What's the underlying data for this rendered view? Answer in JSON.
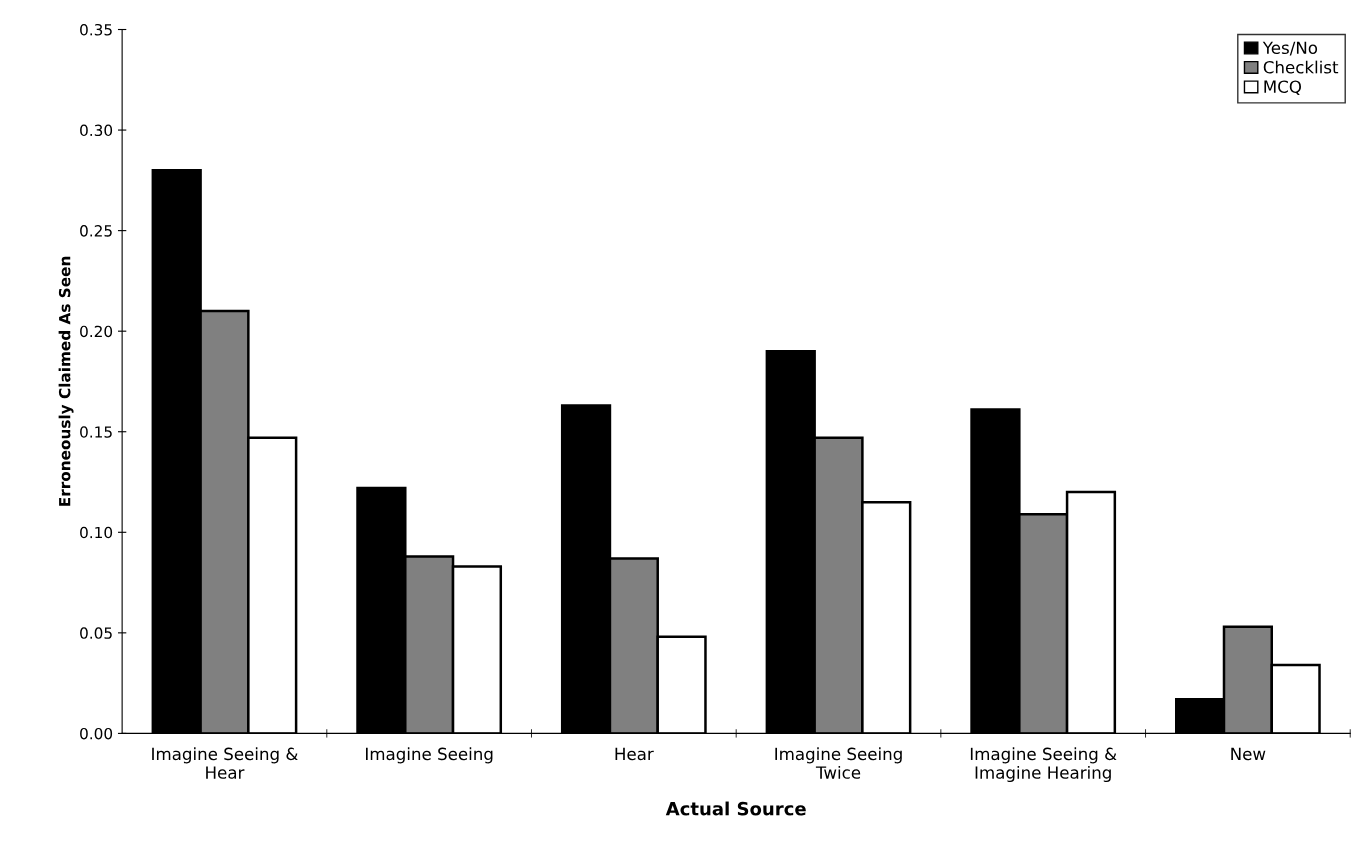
{
  "chart_data": {
    "type": "bar",
    "xlabel": "Actual Source",
    "ylabel": "Erroneously Claimed As Seen",
    "categories": [
      "Imagine Seeing &\nHear",
      "Imagine Seeing",
      "Hear",
      "Imagine Seeing\nTwice",
      "Imagine Seeing &\nImagine Hearing",
      "New"
    ],
    "series": [
      {
        "name": "Yes/No",
        "color": "#000000",
        "values": [
          0.28,
          0.122,
          0.163,
          0.19,
          0.161,
          0.017
        ]
      },
      {
        "name": "Checklist",
        "color": "#808080",
        "values": [
          0.21,
          0.088,
          0.087,
          0.147,
          0.109,
          0.053
        ]
      },
      {
        "name": "MCQ",
        "color": "#ffffff",
        "values": [
          0.147,
          0.083,
          0.048,
          0.115,
          0.12,
          0.034
        ]
      }
    ],
    "ylim": [
      0,
      0.35
    ],
    "yticks": [
      {
        "value": 0,
        "label": "0.00"
      },
      {
        "value": 0.05,
        "label": "0.05"
      },
      {
        "value": 0.1,
        "label": "0.10"
      },
      {
        "value": 0.15,
        "label": "0.15"
      },
      {
        "value": 0.2,
        "label": "0.20"
      },
      {
        "value": 0.25,
        "label": "0.25"
      },
      {
        "value": 0.3,
        "label": "0.30"
      },
      {
        "value": 0.35,
        "label": "0.35"
      }
    ],
    "grid": false,
    "legend": "top right"
  }
}
